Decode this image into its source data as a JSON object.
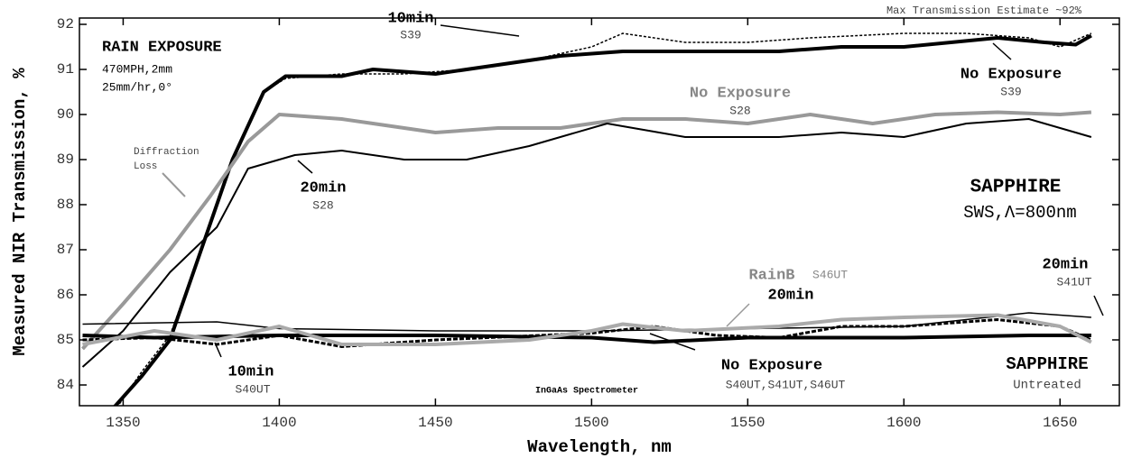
{
  "chart_data": {
    "type": "line",
    "xlabel": "Wavelength, nm",
    "ylabel": "Measured NIR Transmission, %",
    "xlim": [
      1336,
      1669
    ],
    "ylim": [
      83.54,
      92.14
    ],
    "xticks": [
      1350,
      1400,
      1450,
      1500,
      1550,
      1600,
      1650
    ],
    "yticks": [
      84,
      85,
      86,
      87,
      88,
      89,
      90,
      91,
      92
    ],
    "annotations": [
      "RAIN EXPOSURE",
      "470MPH,2mm",
      "25mm/hr,0°",
      "Diffraction",
      "Loss",
      "SAPPHIRE",
      "SWS,Λ=800nm",
      "SAPPHIRE",
      "Untreated",
      "InGaAs Spectrometer",
      "Max Transmission Estimate ~92%"
    ],
    "series": [
      {
        "name": "10min",
        "sample": "S39",
        "color": "#000",
        "width": 1.5,
        "dash": "3,2",
        "x": [
          1348,
          1356,
          1365,
          1375,
          1385,
          1395,
          1402,
          1420,
          1440,
          1460,
          1480,
          1500,
          1510,
          1530,
          1550,
          1570,
          1600,
          1620,
          1640,
          1650,
          1660
        ],
        "values": [
          83.5,
          84.3,
          85.1,
          87.0,
          89.0,
          90.5,
          90.8,
          90.9,
          90.9,
          91.0,
          91.2,
          91.5,
          91.8,
          91.6,
          91.6,
          91.7,
          91.8,
          91.8,
          91.7,
          91.5,
          91.8
        ]
      },
      {
        "name": "No Exposure",
        "sample": "S39",
        "color": "#000",
        "width": 4,
        "dash": "",
        "x": [
          1347,
          1356,
          1365,
          1375,
          1385,
          1395,
          1402,
          1420,
          1430,
          1450,
          1470,
          1490,
          1510,
          1540,
          1560,
          1580,
          1600,
          1630,
          1645,
          1655,
          1660
        ],
        "values": [
          83.5,
          84.2,
          85.0,
          87.0,
          89.0,
          90.5,
          90.85,
          90.85,
          91.0,
          90.9,
          91.1,
          91.3,
          91.4,
          91.4,
          91.4,
          91.5,
          91.5,
          91.7,
          91.6,
          91.55,
          91.75
        ]
      },
      {
        "name": "No Exposure",
        "sample": "S28",
        "color": "#999",
        "width": 4,
        "dash": "",
        "x": [
          1337,
          1350,
          1365,
          1378,
          1390,
          1400,
          1420,
          1430,
          1450,
          1470,
          1490,
          1510,
          1530,
          1550,
          1570,
          1590,
          1610,
          1630,
          1650,
          1660
        ],
        "values": [
          84.8,
          85.8,
          87.0,
          88.2,
          89.4,
          90.0,
          89.9,
          89.8,
          89.6,
          89.7,
          89.7,
          89.9,
          89.9,
          89.8,
          90.0,
          89.8,
          90.0,
          90.05,
          90.0,
          90.05
        ]
      },
      {
        "name": "20min",
        "sample": "S28",
        "color": "#000",
        "width": 2,
        "dash": "",
        "x": [
          1337,
          1350,
          1365,
          1380,
          1390,
          1405,
          1420,
          1440,
          1460,
          1480,
          1505,
          1530,
          1560,
          1580,
          1600,
          1620,
          1640,
          1660
        ],
        "values": [
          84.4,
          85.2,
          86.5,
          87.5,
          88.8,
          89.1,
          89.2,
          89.0,
          89.0,
          89.3,
          89.8,
          89.5,
          89.5,
          89.6,
          89.5,
          89.8,
          89.9,
          89.5
        ]
      },
      {
        "name": "No Exposure",
        "sample": "S40UT,S41UT,S46UT",
        "color": "#000",
        "width": 4,
        "dash": "",
        "x": [
          1337,
          1360,
          1400,
          1450,
          1500,
          1520,
          1550,
          1600,
          1640,
          1660
        ],
        "values": [
          85.1,
          85.05,
          85.1,
          85.1,
          85.05,
          84.95,
          85.05,
          85.05,
          85.1,
          85.1
        ]
      },
      {
        "name": "20min",
        "sample": "S41UT",
        "color": "#000",
        "width": 1.5,
        "dash": "",
        "x": [
          1337,
          1380,
          1400,
          1450,
          1500,
          1550,
          1600,
          1640,
          1660
        ],
        "values": [
          85.35,
          85.4,
          85.25,
          85.2,
          85.2,
          85.25,
          85.3,
          85.6,
          85.5
        ]
      },
      {
        "name": "10min",
        "sample": "S40UT",
        "color": "#000",
        "width": 3,
        "dash": "5,2",
        "x": [
          1337,
          1360,
          1380,
          1400,
          1420,
          1450,
          1500,
          1520,
          1540,
          1560,
          1580,
          1600,
          1630,
          1650,
          1660
        ],
        "values": [
          85.0,
          85.05,
          84.9,
          85.1,
          84.85,
          85.0,
          85.15,
          85.3,
          85.1,
          85.05,
          85.3,
          85.3,
          85.45,
          85.3,
          85.0
        ]
      },
      {
        "name": "20min",
        "prefix": "RainB",
        "sample": "S46UT",
        "color": "#aaa",
        "width": 4,
        "dash": "",
        "x": [
          1337,
          1360,
          1380,
          1400,
          1420,
          1450,
          1480,
          1500,
          1510,
          1530,
          1560,
          1580,
          1600,
          1630,
          1650,
          1660
        ],
        "values": [
          84.9,
          85.2,
          85.0,
          85.3,
          84.9,
          84.9,
          85.0,
          85.2,
          85.35,
          85.2,
          85.3,
          85.45,
          85.5,
          85.55,
          85.3,
          84.95
        ]
      }
    ]
  }
}
